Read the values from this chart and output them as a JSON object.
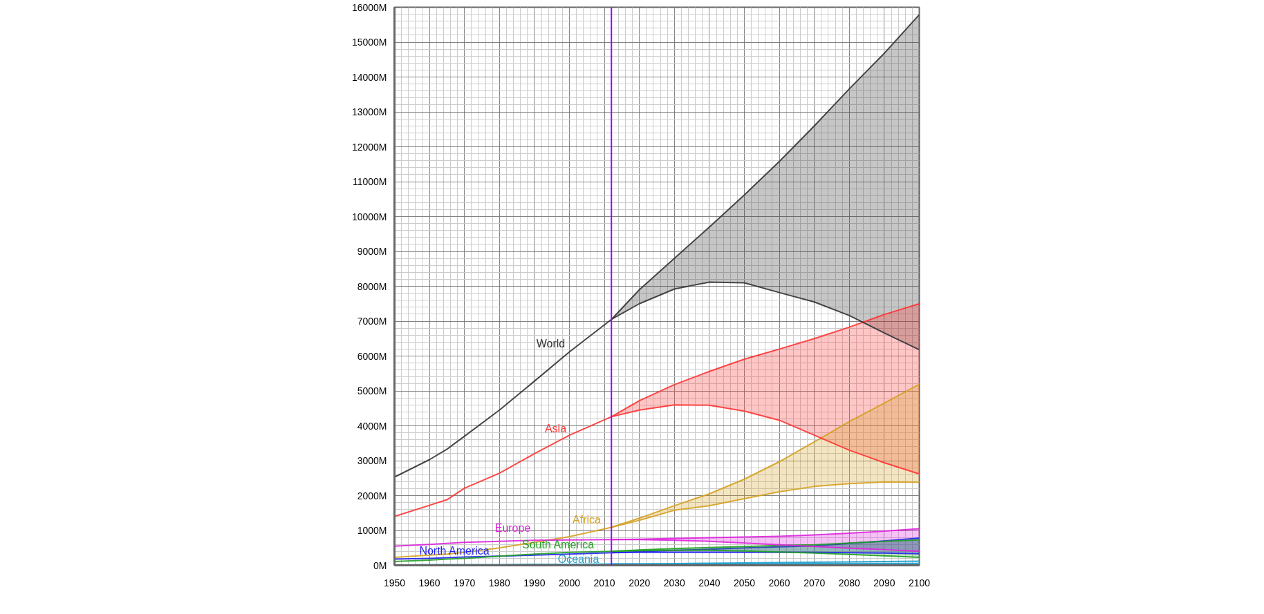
{
  "chart_data": {
    "type": "line",
    "xlim": [
      1950,
      2100
    ],
    "ylim": [
      0,
      16000
    ],
    "xticks": [
      1950,
      1960,
      1970,
      1980,
      1990,
      2000,
      2010,
      2020,
      2030,
      2040,
      2050,
      2060,
      2070,
      2080,
      2090,
      2100
    ],
    "yticks": [
      {
        "value": 0,
        "label": "0M"
      },
      {
        "value": 1000,
        "label": "1000M"
      },
      {
        "value": 2000,
        "label": "2000M"
      },
      {
        "value": 3000,
        "label": "3000M"
      },
      {
        "value": 4000,
        "label": "4000M"
      },
      {
        "value": 5000,
        "label": "5000M"
      },
      {
        "value": 6000,
        "label": "6000M"
      },
      {
        "value": 7000,
        "label": "7000M"
      },
      {
        "value": 8000,
        "label": "8000M"
      },
      {
        "value": 9000,
        "label": "9000M"
      },
      {
        "value": 10000,
        "label": "10000M"
      },
      {
        "value": 11000,
        "label": "11000M"
      },
      {
        "value": 12000,
        "label": "12000M"
      },
      {
        "value": 13000,
        "label": "13000M"
      },
      {
        "value": 14000,
        "label": "14000M"
      },
      {
        "value": 15000,
        "label": "15000M"
      },
      {
        "value": 16000,
        "label": "16000M"
      }
    ],
    "grid": true,
    "x": [
      1950,
      1960,
      1965,
      1970,
      1980,
      1990,
      2000,
      2012,
      2020,
      2030,
      2040,
      2050,
      2060,
      2070,
      2080,
      2090,
      2100
    ],
    "series": [
      {
        "color": "#333333",
        "x": [
          2012,
          2020,
          2030,
          2040,
          2050,
          2060,
          2070,
          2080,
          2090,
          2100
        ],
        "values": [
          7050,
          7900,
          8800,
          9700,
          10620,
          11580,
          12600,
          13660,
          14680,
          15790
        ],
        "lower": [
          7050,
          7500,
          7920,
          8120,
          8100,
          7820,
          7550,
          7160,
          6660,
          6180
        ],
        "upper": [
          7050,
          7900,
          8800,
          9700,
          10620,
          11580,
          12600,
          13660,
          14680,
          15790
        ]
      },
      {
        "color": "#ff3333",
        "x": [
          2012,
          2020,
          2030,
          2040,
          2050,
          2060,
          2070,
          2080,
          2090,
          2100
        ],
        "values": [
          4260,
          4720,
          5180,
          5560,
          5910,
          6200,
          6500,
          6830,
          7190,
          7500
        ],
        "lower": [
          4260,
          4450,
          4600,
          4590,
          4420,
          4160,
          3730,
          3300,
          2940,
          2620
        ],
        "upper": [
          4260,
          4720,
          5180,
          5560,
          5910,
          6200,
          6500,
          6830,
          7190,
          7500
        ]
      },
      {
        "color": "#d4a020",
        "x": [
          2012,
          2020,
          2030,
          2040,
          2050,
          2060,
          2070,
          2080,
          2090,
          2100
        ],
        "values": [
          1090,
          1350,
          1710,
          2050,
          2470,
          2970,
          3540,
          4120,
          4650,
          5190
        ],
        "lower": [
          1090,
          1290,
          1580,
          1710,
          1910,
          2110,
          2260,
          2340,
          2390,
          2380
        ],
        "upper": [
          1090,
          1350,
          1710,
          2050,
          2470,
          2970,
          3540,
          4120,
          4650,
          5190
        ]
      },
      {
        "color": "#dd22dd",
        "x": [
          2012,
          2020,
          2030,
          2040,
          2050,
          2060,
          2070,
          2080,
          2090,
          2100
        ],
        "values": [
          740,
          750,
          770,
          790,
          810,
          830,
          870,
          920,
          980,
          1050
        ],
        "lower": [
          740,
          740,
          720,
          690,
          640,
          590,
          540,
          490,
          450,
          400
        ],
        "upper": [
          740,
          750,
          770,
          790,
          810,
          830,
          870,
          920,
          980,
          1050
        ]
      },
      {
        "color": "#2222ee",
        "x": [
          2012,
          2020,
          2030,
          2040,
          2050,
          2060,
          2070,
          2080,
          2090,
          2100
        ],
        "values": [
          360,
          390,
          430,
          460,
          500,
          530,
          560,
          630,
          700,
          780
        ],
        "lower": [
          360,
          370,
          370,
          370,
          370,
          370,
          370,
          360,
          350,
          330
        ],
        "upper": [
          360,
          390,
          430,
          460,
          500,
          530,
          560,
          630,
          700,
          780
        ]
      },
      {
        "color": "#22a022",
        "x": [
          2012,
          2020,
          2030,
          2040,
          2050,
          2060,
          2070,
          2080,
          2090,
          2100
        ],
        "values": [
          400,
          440,
          480,
          510,
          540,
          570,
          590,
          640,
          690,
          730
        ],
        "lower": [
          400,
          420,
          430,
          430,
          410,
          380,
          350,
          310,
          270,
          230
        ],
        "upper": [
          400,
          440,
          480,
          510,
          540,
          570,
          590,
          640,
          690,
          730
        ]
      },
      {
        "color": "#22a0cc",
        "x": [
          2012,
          2020,
          2030,
          2040,
          2050,
          2060,
          2070,
          2080,
          2090,
          2100
        ],
        "values": [
          40,
          40,
          50,
          60,
          70,
          80,
          90,
          100,
          110,
          120
        ],
        "lower": [
          40,
          40,
          40,
          50,
          50,
          50,
          50,
          50,
          50,
          50
        ],
        "upper": [
          40,
          40,
          50,
          60,
          70,
          80,
          90,
          100,
          110,
          120
        ]
      },
      {
        "color": "#333333",
        "values": [
          2530,
          3030,
          3330,
          3700,
          4450,
          5280,
          6120,
          7050,
          7500,
          7920,
          8120,
          8100,
          7820,
          7550,
          7160,
          6660,
          6180
        ]
      },
      {
        "color": "#ff3333",
        "values": [
          1400,
          1720,
          1880,
          2210,
          2640,
          3200,
          3730,
          4260,
          4450,
          4600,
          4590,
          4420,
          4160,
          3730,
          3300,
          2940,
          2620
        ]
      },
      {
        "color": "#d4a020",
        "values": [
          230,
          290,
          320,
          370,
          500,
          660,
          820,
          1090,
          1290,
          1580,
          1710,
          1910,
          2110,
          2260,
          2340,
          2390,
          2380
        ]
      },
      {
        "color": "#dd22dd",
        "values": [
          550,
          600,
          630,
          660,
          690,
          720,
          730,
          740,
          740,
          720,
          690,
          640,
          590,
          540,
          490,
          450,
          400
        ]
      },
      {
        "color": "#2222ee",
        "values": [
          180,
          200,
          220,
          240,
          260,
          290,
          320,
          360,
          370,
          370,
          370,
          370,
          370,
          370,
          360,
          350,
          330
        ]
      },
      {
        "color": "#22a022",
        "values": [
          110,
          150,
          180,
          200,
          260,
          320,
          370,
          400,
          420,
          430,
          430,
          410,
          380,
          350,
          310,
          270,
          230
        ]
      },
      {
        "color": "#22a0cc",
        "values": [
          10,
          20,
          20,
          20,
          20,
          30,
          30,
          40,
          40,
          40,
          50,
          50,
          50,
          50,
          50,
          50,
          50
        ]
      }
    ],
    "ref_lines": [
      {
        "axis": "x",
        "value": 2012,
        "color": "#9900ff"
      }
    ],
    "annotations": [
      "World",
      "Asia",
      "Africa",
      "Europe",
      "North America",
      "South America",
      "Oceania"
    ]
  }
}
